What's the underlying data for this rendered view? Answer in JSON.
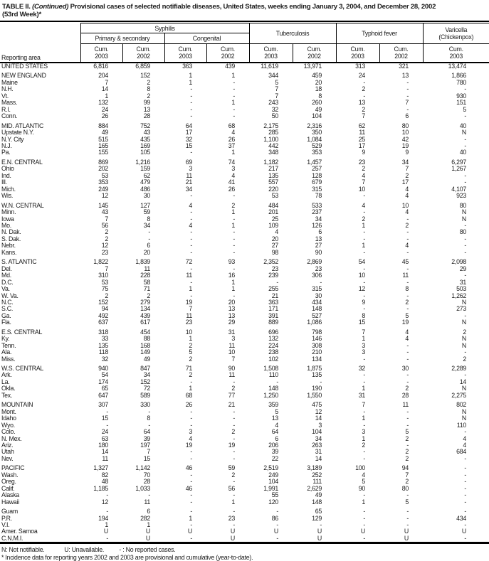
{
  "title": {
    "part1": "TABLE II. ",
    "continued": "(Continued)",
    "part2": " Provisional cases of selected notifiable diseases, United States, weeks ending January 3, 2004, and December 28, 2002",
    "line2": "(53rd Week)*"
  },
  "table": {
    "header": {
      "reporting_area": "Reporting area",
      "syphilis": "Syphilis",
      "primary_secondary": "Primary & secondary",
      "congenital": "Congenital",
      "tuberculosis": "Tuberculosis",
      "typhoid": "Typhoid fever",
      "varicella_line1": "Varicella",
      "varicella_line2": "(Chickenpox)",
      "cum": "Cum.",
      "years": [
        "2003",
        "2002",
        "2003",
        "2002",
        "2003",
        "2002",
        "2003",
        "2002",
        "2003"
      ]
    },
    "rows": [
      {
        "area": "UNITED STATES",
        "type": "total",
        "gap": false,
        "values": [
          "6,816",
          "6,859",
          "363",
          "439",
          "11,619",
          "13,971",
          "313",
          "321",
          "13,474"
        ]
      },
      {
        "area": "NEW ENGLAND",
        "type": "region",
        "gap": true,
        "values": [
          "204",
          "152",
          "1",
          "1",
          "344",
          "459",
          "24",
          "13",
          "1,866"
        ]
      },
      {
        "area": "Maine",
        "type": "state",
        "gap": false,
        "values": [
          "7",
          "2",
          "1",
          "-",
          "5",
          "20",
          "-",
          "-",
          "780"
        ]
      },
      {
        "area": "N.H.",
        "type": "state",
        "gap": false,
        "values": [
          "14",
          "8",
          "-",
          "-",
          "7",
          "18",
          "2",
          "-",
          "-"
        ]
      },
      {
        "area": "Vt.",
        "type": "state",
        "gap": false,
        "values": [
          "1",
          "2",
          "-",
          "-",
          "7",
          "8",
          "-",
          "-",
          "930"
        ]
      },
      {
        "area": "Mass.",
        "type": "state",
        "gap": false,
        "values": [
          "132",
          "99",
          "-",
          "1",
          "243",
          "260",
          "13",
          "7",
          "151"
        ]
      },
      {
        "area": "R.I.",
        "type": "state",
        "gap": false,
        "values": [
          "24",
          "13",
          "-",
          "-",
          "32",
          "49",
          "2",
          "-",
          "5"
        ]
      },
      {
        "area": "Conn.",
        "type": "state",
        "gap": false,
        "values": [
          "26",
          "28",
          "-",
          "-",
          "50",
          "104",
          "7",
          "6",
          "-"
        ]
      },
      {
        "area": "MID. ATLANTIC",
        "type": "region",
        "gap": true,
        "values": [
          "884",
          "752",
          "64",
          "68",
          "2,175",
          "2,316",
          "62",
          "80",
          "40"
        ]
      },
      {
        "area": "Upstate N.Y.",
        "type": "state",
        "gap": false,
        "values": [
          "49",
          "43",
          "17",
          "4",
          "285",
          "350",
          "11",
          "10",
          "N"
        ]
      },
      {
        "area": "N.Y. City",
        "type": "state",
        "gap": false,
        "values": [
          "515",
          "435",
          "32",
          "26",
          "1,100",
          "1,084",
          "25",
          "42",
          "-"
        ]
      },
      {
        "area": "N.J.",
        "type": "state",
        "gap": false,
        "values": [
          "165",
          "169",
          "15",
          "37",
          "442",
          "529",
          "17",
          "19",
          "-"
        ]
      },
      {
        "area": "Pa.",
        "type": "state",
        "gap": false,
        "values": [
          "155",
          "105",
          "-",
          "1",
          "348",
          "353",
          "9",
          "9",
          "40"
        ]
      },
      {
        "area": "E.N. CENTRAL",
        "type": "region",
        "gap": true,
        "values": [
          "869",
          "1,216",
          "69",
          "74",
          "1,182",
          "1,457",
          "23",
          "34",
          "6,297"
        ]
      },
      {
        "area": "Ohio",
        "type": "state",
        "gap": false,
        "values": [
          "202",
          "159",
          "3",
          "3",
          "217",
          "257",
          "2",
          "7",
          "1,267"
        ]
      },
      {
        "area": "Ind.",
        "type": "state",
        "gap": false,
        "values": [
          "53",
          "62",
          "11",
          "4",
          "135",
          "128",
          "4",
          "2",
          "-"
        ]
      },
      {
        "area": "Ill.",
        "type": "state",
        "gap": false,
        "values": [
          "353",
          "479",
          "21",
          "41",
          "557",
          "679",
          "7",
          "17",
          "-"
        ]
      },
      {
        "area": "Mich.",
        "type": "state",
        "gap": false,
        "values": [
          "249",
          "486",
          "34",
          "26",
          "220",
          "315",
          "10",
          "4",
          "4,107"
        ]
      },
      {
        "area": "Wis.",
        "type": "state",
        "gap": false,
        "values": [
          "12",
          "30",
          "-",
          "-",
          "53",
          "78",
          "-",
          "4",
          "923"
        ]
      },
      {
        "area": "W.N. CENTRAL",
        "type": "region",
        "gap": true,
        "values": [
          "145",
          "127",
          "4",
          "2",
          "484",
          "533",
          "4",
          "10",
          "80"
        ]
      },
      {
        "area": "Minn.",
        "type": "state",
        "gap": false,
        "values": [
          "43",
          "59",
          "-",
          "1",
          "201",
          "237",
          "-",
          "4",
          "N"
        ]
      },
      {
        "area": "Iowa",
        "type": "state",
        "gap": false,
        "values": [
          "7",
          "8",
          "-",
          "-",
          "25",
          "34",
          "2",
          "-",
          "N"
        ]
      },
      {
        "area": "Mo.",
        "type": "state",
        "gap": false,
        "values": [
          "56",
          "34",
          "4",
          "1",
          "109",
          "126",
          "1",
          "2",
          "-"
        ]
      },
      {
        "area": "N. Dak.",
        "type": "state",
        "gap": false,
        "values": [
          "2",
          "-",
          "-",
          "-",
          "4",
          "6",
          "-",
          "-",
          "80"
        ]
      },
      {
        "area": "S. Dak.",
        "type": "state",
        "gap": false,
        "values": [
          "2",
          "-",
          "-",
          "-",
          "20",
          "13",
          "-",
          "-",
          "-"
        ]
      },
      {
        "area": "Nebr.",
        "type": "state",
        "gap": false,
        "values": [
          "12",
          "6",
          "-",
          "-",
          "27",
          "27",
          "1",
          "4",
          "-"
        ]
      },
      {
        "area": "Kans.",
        "type": "state",
        "gap": false,
        "values": [
          "23",
          "20",
          "-",
          "-",
          "98",
          "90",
          "-",
          "-",
          "-"
        ]
      },
      {
        "area": "S. ATLANTIC",
        "type": "region",
        "gap": true,
        "values": [
          "1,822",
          "1,839",
          "72",
          "93",
          "2,352",
          "2,869",
          "54",
          "45",
          "2,098"
        ]
      },
      {
        "area": "Del.",
        "type": "state",
        "gap": false,
        "values": [
          "7",
          "11",
          "-",
          "-",
          "23",
          "23",
          "-",
          "-",
          "29"
        ]
      },
      {
        "area": "Md.",
        "type": "state",
        "gap": false,
        "values": [
          "310",
          "228",
          "11",
          "16",
          "239",
          "306",
          "10",
          "11",
          "-"
        ]
      },
      {
        "area": "D.C.",
        "type": "state",
        "gap": false,
        "values": [
          "53",
          "58",
          "-",
          "1",
          "-",
          "-",
          "-",
          "-",
          "31"
        ]
      },
      {
        "area": "Va.",
        "type": "state",
        "gap": false,
        "values": [
          "75",
          "71",
          "1",
          "1",
          "255",
          "315",
          "12",
          "8",
          "503"
        ]
      },
      {
        "area": "W. Va.",
        "type": "state",
        "gap": false,
        "values": [
          "2",
          "2",
          "-",
          "-",
          "21",
          "30",
          "-",
          "-",
          "1,262"
        ]
      },
      {
        "area": "N.C.",
        "type": "state",
        "gap": false,
        "values": [
          "152",
          "279",
          "19",
          "20",
          "363",
          "434",
          "9",
          "2",
          "N"
        ]
      },
      {
        "area": "S.C.",
        "type": "state",
        "gap": false,
        "values": [
          "94",
          "134",
          "7",
          "13",
          "171",
          "148",
          "-",
          "-",
          "273"
        ]
      },
      {
        "area": "Ga.",
        "type": "state",
        "gap": false,
        "values": [
          "492",
          "439",
          "11",
          "13",
          "391",
          "527",
          "8",
          "5",
          "-"
        ]
      },
      {
        "area": "Fla.",
        "type": "state",
        "gap": false,
        "values": [
          "637",
          "617",
          "23",
          "29",
          "889",
          "1,086",
          "15",
          "19",
          "N"
        ]
      },
      {
        "area": "E.S. CENTRAL",
        "type": "region",
        "gap": true,
        "values": [
          "318",
          "454",
          "10",
          "31",
          "696",
          "798",
          "7",
          "4",
          "2"
        ]
      },
      {
        "area": "Ky.",
        "type": "state",
        "gap": false,
        "values": [
          "33",
          "88",
          "1",
          "3",
          "132",
          "146",
          "1",
          "4",
          "N"
        ]
      },
      {
        "area": "Tenn.",
        "type": "state",
        "gap": false,
        "values": [
          "135",
          "168",
          "2",
          "11",
          "224",
          "308",
          "3",
          "-",
          "N"
        ]
      },
      {
        "area": "Ala.",
        "type": "state",
        "gap": false,
        "values": [
          "118",
          "149",
          "5",
          "10",
          "238",
          "210",
          "3",
          "-",
          "-"
        ]
      },
      {
        "area": "Miss.",
        "type": "state",
        "gap": false,
        "values": [
          "32",
          "49",
          "2",
          "7",
          "102",
          "134",
          "-",
          "-",
          "2"
        ]
      },
      {
        "area": "W.S. CENTRAL",
        "type": "region",
        "gap": true,
        "values": [
          "940",
          "847",
          "71",
          "90",
          "1,508",
          "1,875",
          "32",
          "30",
          "2,289"
        ]
      },
      {
        "area": "Ark.",
        "type": "state",
        "gap": false,
        "values": [
          "54",
          "34",
          "2",
          "11",
          "110",
          "135",
          "-",
          "-",
          "-"
        ]
      },
      {
        "area": "La.",
        "type": "state",
        "gap": false,
        "values": [
          "174",
          "152",
          "-",
          "-",
          "-",
          "-",
          "-",
          "-",
          "14"
        ]
      },
      {
        "area": "Okla.",
        "type": "state",
        "gap": false,
        "values": [
          "65",
          "72",
          "1",
          "2",
          "148",
          "190",
          "1",
          "2",
          "N"
        ]
      },
      {
        "area": "Tex.",
        "type": "state",
        "gap": false,
        "values": [
          "647",
          "589",
          "68",
          "77",
          "1,250",
          "1,550",
          "31",
          "28",
          "2,275"
        ]
      },
      {
        "area": "MOUNTAIN",
        "type": "region",
        "gap": true,
        "values": [
          "307",
          "330",
          "26",
          "21",
          "359",
          "475",
          "7",
          "11",
          "802"
        ]
      },
      {
        "area": "Mont.",
        "type": "state",
        "gap": false,
        "values": [
          "-",
          "-",
          "-",
          "-",
          "5",
          "12",
          "-",
          "-",
          "N"
        ]
      },
      {
        "area": "Idaho",
        "type": "state",
        "gap": false,
        "values": [
          "15",
          "8",
          "-",
          "-",
          "13",
          "14",
          "1",
          "-",
          "N"
        ]
      },
      {
        "area": "Wyo.",
        "type": "state",
        "gap": false,
        "values": [
          "-",
          "-",
          "-",
          "-",
          "4",
          "3",
          "-",
          "-",
          "110"
        ]
      },
      {
        "area": "Colo.",
        "type": "state",
        "gap": false,
        "values": [
          "24",
          "64",
          "3",
          "2",
          "64",
          "104",
          "3",
          "5",
          "-"
        ]
      },
      {
        "area": "N. Mex.",
        "type": "state",
        "gap": false,
        "values": [
          "63",
          "39",
          "4",
          "-",
          "6",
          "34",
          "1",
          "2",
          "4"
        ]
      },
      {
        "area": "Ariz.",
        "type": "state",
        "gap": false,
        "values": [
          "180",
          "197",
          "19",
          "19",
          "206",
          "263",
          "2",
          "-",
          "4"
        ]
      },
      {
        "area": "Utah",
        "type": "state",
        "gap": false,
        "values": [
          "14",
          "7",
          "-",
          "-",
          "39",
          "31",
          "-",
          "2",
          "684"
        ]
      },
      {
        "area": "Nev.",
        "type": "state",
        "gap": false,
        "values": [
          "11",
          "15",
          "-",
          "-",
          "22",
          "14",
          "-",
          "2",
          "-"
        ]
      },
      {
        "area": "PACIFIC",
        "type": "region",
        "gap": true,
        "values": [
          "1,327",
          "1,142",
          "46",
          "59",
          "2,519",
          "3,189",
          "100",
          "94",
          "-"
        ]
      },
      {
        "area": "Wash.",
        "type": "state",
        "gap": false,
        "values": [
          "82",
          "70",
          "-",
          "2",
          "249",
          "252",
          "4",
          "7",
          "-"
        ]
      },
      {
        "area": "Oreg.",
        "type": "state",
        "gap": false,
        "values": [
          "48",
          "28",
          "-",
          "-",
          "104",
          "111",
          "5",
          "2",
          "-"
        ]
      },
      {
        "area": "Calif.",
        "type": "state",
        "gap": false,
        "values": [
          "1,185",
          "1,033",
          "46",
          "56",
          "1,991",
          "2,629",
          "90",
          "80",
          "-"
        ]
      },
      {
        "area": "Alaska",
        "type": "state",
        "gap": false,
        "values": [
          "-",
          "-",
          "-",
          "-",
          "55",
          "49",
          "-",
          "-",
          "-"
        ]
      },
      {
        "area": "Hawaii",
        "type": "state",
        "gap": false,
        "values": [
          "12",
          "11",
          "-",
          "1",
          "120",
          "148",
          "1",
          "5",
          "-"
        ]
      },
      {
        "area": "Guam",
        "type": "state",
        "gap": true,
        "values": [
          "-",
          "6",
          "-",
          "-",
          "-",
          "65",
          "-",
          "-",
          "-"
        ]
      },
      {
        "area": "P.R.",
        "type": "state",
        "gap": false,
        "values": [
          "194",
          "282",
          "1",
          "23",
          "86",
          "129",
          "-",
          "-",
          "434"
        ]
      },
      {
        "area": "V.I.",
        "type": "state",
        "gap": false,
        "values": [
          "1",
          "1",
          "-",
          "-",
          "-",
          "-",
          "-",
          "-",
          "-"
        ]
      },
      {
        "area": "Amer. Samoa",
        "type": "state",
        "gap": false,
        "values": [
          "U",
          "U",
          "U",
          "U",
          "U",
          "U",
          "U",
          "U",
          "U"
        ]
      },
      {
        "area": "C.N.M.I.",
        "type": "state",
        "gap": false,
        "values": [
          "-",
          "U",
          "-",
          "U",
          "-",
          "U",
          "-",
          "U",
          "-"
        ]
      }
    ]
  },
  "footnotes": {
    "legend": [
      "N: Not notifiable.",
      "U: Unavailable.",
      "- : No reported cases."
    ],
    "asterisk": "* Incidence data for reporting years 2002 and 2003 are provisional and cumulative (year-to-date)."
  }
}
